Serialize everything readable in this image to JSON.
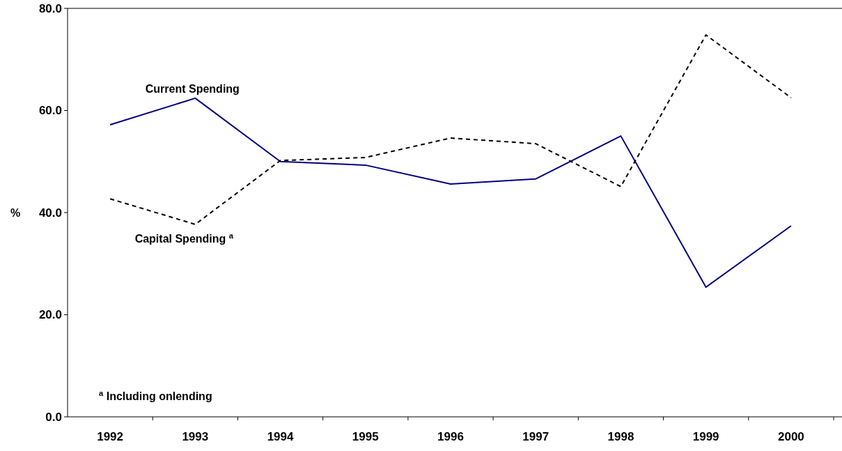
{
  "chart_data": {
    "type": "line",
    "ylabel": "%",
    "categories": [
      "1992",
      "1993",
      "1994",
      "1995",
      "1996",
      "1997",
      "1998",
      "1999",
      "2000"
    ],
    "series": [
      {
        "name": "Current Spending",
        "color": "#000080",
        "line_style": "solid",
        "values": [
          57.2,
          62.4,
          50.0,
          49.3,
          45.6,
          46.6,
          55.0,
          25.4,
          37.4
        ]
      },
      {
        "name": "Capital Spending $^{a}$",
        "color": "#000000",
        "line_style": "dashed",
        "values": [
          42.7,
          37.7,
          50.2,
          50.8,
          54.6,
          53.5,
          45.1,
          74.8,
          62.5
        ]
      }
    ],
    "ylim": [
      0,
      80
    ],
    "yticks": [
      {
        "value": 0,
        "label": "0.0"
      },
      {
        "value": 20,
        "label": "20.0"
      },
      {
        "value": 40,
        "label": "40.0"
      },
      {
        "value": 60,
        "label": "60.0"
      },
      {
        "value": 80,
        "label": "80.0"
      }
    ],
    "grid": false,
    "marker": "none",
    "annotations": [
      "$^{a}$ Including onlending"
    ]
  }
}
